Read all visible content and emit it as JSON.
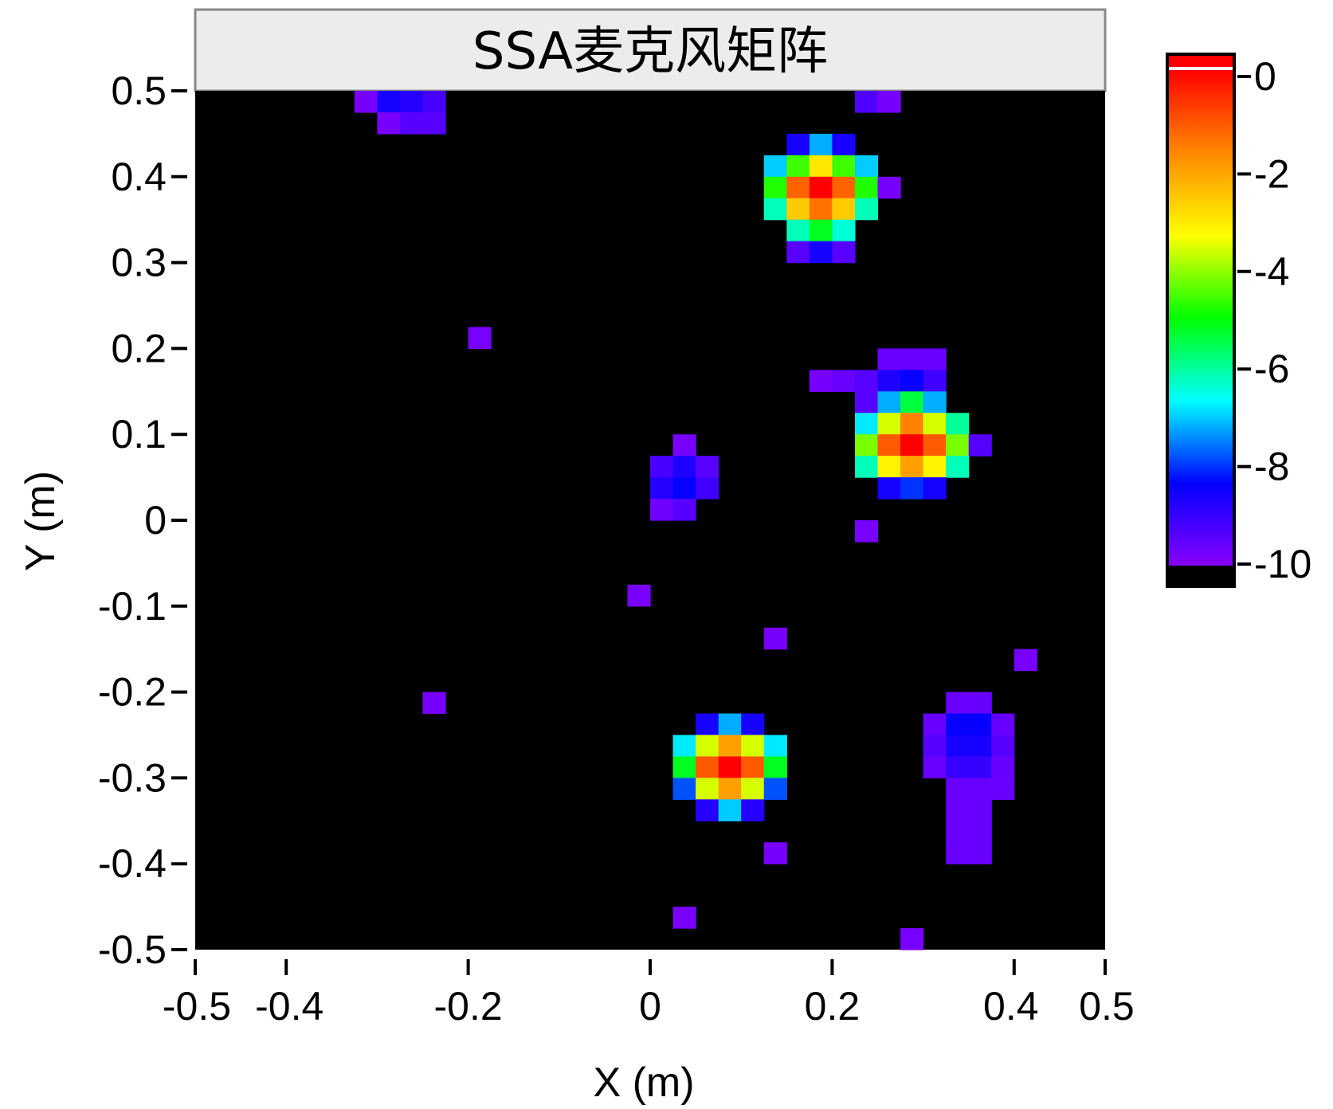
{
  "chart_data": {
    "type": "heatmap",
    "title": "SSA麦克风矩阵",
    "xlabel": "X (m)",
    "ylabel": "Y (m)",
    "xlim": [
      -0.5,
      0.5
    ],
    "ylim": [
      -0.5,
      0.5
    ],
    "cell_size": 0.025,
    "x_ticks": [
      -0.5,
      -0.4,
      -0.2,
      0,
      0.2,
      0.4,
      0.5
    ],
    "x_tick_labels": [
      "-0.5",
      "-0.4",
      "-0.2",
      "0",
      "0.2",
      "0.4",
      "0.5"
    ],
    "y_ticks": [
      0.5,
      0.4,
      0.3,
      0.2,
      0.1,
      0,
      -0.1,
      -0.2,
      -0.3,
      -0.4,
      -0.5
    ],
    "y_tick_labels": [
      "0.5",
      "0.4",
      "0.3",
      "0.2",
      "0.1",
      "0",
      "-0.1",
      "-0.2",
      "-0.3",
      "-0.4",
      "-0.5"
    ],
    "colorbar": {
      "range": [
        -10,
        0
      ],
      "ticks": [
        0,
        -2,
        -4,
        -6,
        -8,
        -10
      ],
      "tick_labels": [
        "0",
        "-2",
        "-4",
        "-6",
        "-8",
        "-10"
      ],
      "colors": [
        "#8800ff",
        "#0000ff",
        "#00ffff",
        "#00ff00",
        "#ffff00",
        "#ff8800",
        "#ff0000"
      ]
    },
    "background": "#000000",
    "cells": [
      {
        "x": -0.3125,
        "y": 0.4875,
        "v": -9.8
      },
      {
        "x": -0.2875,
        "y": 0.4875,
        "v": -8.6
      },
      {
        "x": -0.2625,
        "y": 0.4875,
        "v": -8.8
      },
      {
        "x": -0.2375,
        "y": 0.4875,
        "v": -9.2
      },
      {
        "x": -0.2875,
        "y": 0.4625,
        "v": -9.8
      },
      {
        "x": -0.2625,
        "y": 0.4625,
        "v": -9.4
      },
      {
        "x": -0.2375,
        "y": 0.4625,
        "v": -9.4
      },
      {
        "x": 0.2375,
        "y": 0.4875,
        "v": -9.3
      },
      {
        "x": 0.2625,
        "y": 0.4875,
        "v": -9.8
      },
      {
        "x": 0.1625,
        "y": 0.4375,
        "v": -8.6
      },
      {
        "x": 0.1875,
        "y": 0.4375,
        "v": -7.2
      },
      {
        "x": 0.2125,
        "y": 0.4375,
        "v": -8.6
      },
      {
        "x": 0.1375,
        "y": 0.4125,
        "v": -7.0
      },
      {
        "x": 0.1625,
        "y": 0.4125,
        "v": -4.6
      },
      {
        "x": 0.1875,
        "y": 0.4125,
        "v": -3.0
      },
      {
        "x": 0.2125,
        "y": 0.4125,
        "v": -4.6
      },
      {
        "x": 0.2375,
        "y": 0.4125,
        "v": -7.0
      },
      {
        "x": 0.1375,
        "y": 0.3875,
        "v": -4.8
      },
      {
        "x": 0.1625,
        "y": 0.3875,
        "v": -1.2
      },
      {
        "x": 0.1875,
        "y": 0.3875,
        "v": 0.0
      },
      {
        "x": 0.2125,
        "y": 0.3875,
        "v": -1.2
      },
      {
        "x": 0.2375,
        "y": 0.3875,
        "v": -4.8
      },
      {
        "x": 0.2625,
        "y": 0.3875,
        "v": -9.8
      },
      {
        "x": 0.1375,
        "y": 0.3625,
        "v": -6.2
      },
      {
        "x": 0.1625,
        "y": 0.3625,
        "v": -2.6
      },
      {
        "x": 0.1875,
        "y": 0.3625,
        "v": -1.4
      },
      {
        "x": 0.2125,
        "y": 0.3625,
        "v": -2.6
      },
      {
        "x": 0.2375,
        "y": 0.3625,
        "v": -6.2
      },
      {
        "x": 0.1625,
        "y": 0.3375,
        "v": -6.2
      },
      {
        "x": 0.1875,
        "y": 0.3375,
        "v": -5.2
      },
      {
        "x": 0.2125,
        "y": 0.3375,
        "v": -6.4
      },
      {
        "x": 0.1625,
        "y": 0.3125,
        "v": -9.4
      },
      {
        "x": 0.1875,
        "y": 0.3125,
        "v": -8.6
      },
      {
        "x": 0.2125,
        "y": 0.3125,
        "v": -9.4
      },
      {
        "x": -0.1875,
        "y": 0.2125,
        "v": -9.8
      },
      {
        "x": 0.2625,
        "y": 0.1875,
        "v": -9.6
      },
      {
        "x": 0.2875,
        "y": 0.1875,
        "v": -9.6
      },
      {
        "x": 0.3125,
        "y": 0.1875,
        "v": -9.6
      },
      {
        "x": 0.1875,
        "y": 0.1625,
        "v": -9.8
      },
      {
        "x": 0.2125,
        "y": 0.1625,
        "v": -9.6
      },
      {
        "x": 0.2375,
        "y": 0.1625,
        "v": -9.4
      },
      {
        "x": 0.2625,
        "y": 0.1625,
        "v": -8.7
      },
      {
        "x": 0.2875,
        "y": 0.1625,
        "v": -8.4
      },
      {
        "x": 0.3125,
        "y": 0.1625,
        "v": -9.1
      },
      {
        "x": 0.2375,
        "y": 0.1375,
        "v": -9.4
      },
      {
        "x": 0.2625,
        "y": 0.1375,
        "v": -7.2
      },
      {
        "x": 0.2875,
        "y": 0.1375,
        "v": -5.4
      },
      {
        "x": 0.3125,
        "y": 0.1375,
        "v": -7.2
      },
      {
        "x": 0.2375,
        "y": 0.1125,
        "v": -6.8
      },
      {
        "x": 0.2625,
        "y": 0.1125,
        "v": -3.6
      },
      {
        "x": 0.2875,
        "y": 0.1125,
        "v": -1.6
      },
      {
        "x": 0.3125,
        "y": 0.1125,
        "v": -3.6
      },
      {
        "x": 0.3375,
        "y": 0.1125,
        "v": -6.0
      },
      {
        "x": 0.2375,
        "y": 0.0875,
        "v": -4.2
      },
      {
        "x": 0.2625,
        "y": 0.0875,
        "v": -1.1
      },
      {
        "x": 0.2875,
        "y": 0.0875,
        "v": 0.0
      },
      {
        "x": 0.3125,
        "y": 0.0875,
        "v": -1.1
      },
      {
        "x": 0.3375,
        "y": 0.0875,
        "v": -4.2
      },
      {
        "x": 0.3625,
        "y": 0.0875,
        "v": -9.4
      },
      {
        "x": 0.2375,
        "y": 0.0625,
        "v": -6.2
      },
      {
        "x": 0.2625,
        "y": 0.0625,
        "v": -3.2
      },
      {
        "x": 0.2875,
        "y": 0.0625,
        "v": -2.0
      },
      {
        "x": 0.3125,
        "y": 0.0625,
        "v": -3.2
      },
      {
        "x": 0.3375,
        "y": 0.0625,
        "v": -6.2
      },
      {
        "x": 0.2625,
        "y": 0.0375,
        "v": -8.6
      },
      {
        "x": 0.2875,
        "y": 0.0375,
        "v": -8.0
      },
      {
        "x": 0.3125,
        "y": 0.0375,
        "v": -8.6
      },
      {
        "x": 0.0375,
        "y": 0.0875,
        "v": -9.8
      },
      {
        "x": 0.0125,
        "y": 0.0625,
        "v": -9.2
      },
      {
        "x": 0.0375,
        "y": 0.0625,
        "v": -8.7
      },
      {
        "x": 0.0625,
        "y": 0.0625,
        "v": -9.4
      },
      {
        "x": 0.0125,
        "y": 0.0375,
        "v": -8.8
      },
      {
        "x": 0.0375,
        "y": 0.0375,
        "v": -8.4
      },
      {
        "x": 0.0625,
        "y": 0.0375,
        "v": -9.1
      },
      {
        "x": 0.0125,
        "y": 0.0125,
        "v": -9.7
      },
      {
        "x": 0.0375,
        "y": 0.0125,
        "v": -9.4
      },
      {
        "x": 0.2375,
        "y": -0.0125,
        "v": -9.8
      },
      {
        "x": -0.0125,
        "y": -0.0875,
        "v": -9.8
      },
      {
        "x": 0.1375,
        "y": -0.1375,
        "v": -9.8
      },
      {
        "x": 0.4125,
        "y": -0.1625,
        "v": -9.8
      },
      {
        "x": -0.2375,
        "y": -0.2125,
        "v": -9.8
      },
      {
        "x": 0.3375,
        "y": -0.2125,
        "v": -9.6
      },
      {
        "x": 0.3625,
        "y": -0.2125,
        "v": -9.6
      },
      {
        "x": 0.3125,
        "y": -0.2375,
        "v": -9.6
      },
      {
        "x": 0.3375,
        "y": -0.2375,
        "v": -8.4
      },
      {
        "x": 0.3625,
        "y": -0.2375,
        "v": -8.4
      },
      {
        "x": 0.3875,
        "y": -0.2375,
        "v": -9.6
      },
      {
        "x": 0.3125,
        "y": -0.2625,
        "v": -9.4
      },
      {
        "x": 0.3375,
        "y": -0.2625,
        "v": -8.6
      },
      {
        "x": 0.3625,
        "y": -0.2625,
        "v": -8.6
      },
      {
        "x": 0.3875,
        "y": -0.2625,
        "v": -9.4
      },
      {
        "x": 0.3125,
        "y": -0.2875,
        "v": -9.6
      },
      {
        "x": 0.3375,
        "y": -0.2875,
        "v": -9.0
      },
      {
        "x": 0.3625,
        "y": -0.2875,
        "v": -9.0
      },
      {
        "x": 0.3875,
        "y": -0.2875,
        "v": -9.6
      },
      {
        "x": 0.3375,
        "y": -0.3125,
        "v": -9.6
      },
      {
        "x": 0.3625,
        "y": -0.3125,
        "v": -9.6
      },
      {
        "x": 0.3875,
        "y": -0.3125,
        "v": -9.6
      },
      {
        "x": 0.3375,
        "y": -0.3375,
        "v": -9.6
      },
      {
        "x": 0.3625,
        "y": -0.3375,
        "v": -9.6
      },
      {
        "x": 0.3375,
        "y": -0.3625,
        "v": -9.6
      },
      {
        "x": 0.3625,
        "y": -0.3625,
        "v": -9.6
      },
      {
        "x": 0.3375,
        "y": -0.3875,
        "v": -9.6
      },
      {
        "x": 0.3625,
        "y": -0.3875,
        "v": -9.6
      },
      {
        "x": 0.0625,
        "y": -0.2375,
        "v": -8.6
      },
      {
        "x": 0.0875,
        "y": -0.2375,
        "v": -7.2
      },
      {
        "x": 0.1125,
        "y": -0.2375,
        "v": -8.6
      },
      {
        "x": 0.0375,
        "y": -0.2625,
        "v": -6.8
      },
      {
        "x": 0.0625,
        "y": -0.2625,
        "v": -3.6
      },
      {
        "x": 0.0875,
        "y": -0.2625,
        "v": -2.0
      },
      {
        "x": 0.1125,
        "y": -0.2625,
        "v": -3.6
      },
      {
        "x": 0.1375,
        "y": -0.2625,
        "v": -6.8
      },
      {
        "x": 0.0375,
        "y": -0.2875,
        "v": -5.2
      },
      {
        "x": 0.0625,
        "y": -0.2875,
        "v": -1.1
      },
      {
        "x": 0.0875,
        "y": -0.2875,
        "v": 0.0
      },
      {
        "x": 0.1125,
        "y": -0.2875,
        "v": -1.1
      },
      {
        "x": 0.1375,
        "y": -0.2875,
        "v": -5.2
      },
      {
        "x": 0.0375,
        "y": -0.3125,
        "v": -7.8
      },
      {
        "x": 0.0625,
        "y": -0.3125,
        "v": -3.6
      },
      {
        "x": 0.0875,
        "y": -0.3125,
        "v": -2.0
      },
      {
        "x": 0.1125,
        "y": -0.3125,
        "v": -3.6
      },
      {
        "x": 0.1375,
        "y": -0.3125,
        "v": -7.8
      },
      {
        "x": 0.0625,
        "y": -0.3375,
        "v": -8.8
      },
      {
        "x": 0.0875,
        "y": -0.3375,
        "v": -7.0
      },
      {
        "x": 0.1125,
        "y": -0.3375,
        "v": -8.8
      },
      {
        "x": 0.1375,
        "y": -0.3875,
        "v": -9.8
      },
      {
        "x": 0.0375,
        "y": -0.4625,
        "v": -9.8
      },
      {
        "x": 0.2875,
        "y": -0.4875,
        "v": -9.8
      }
    ]
  }
}
